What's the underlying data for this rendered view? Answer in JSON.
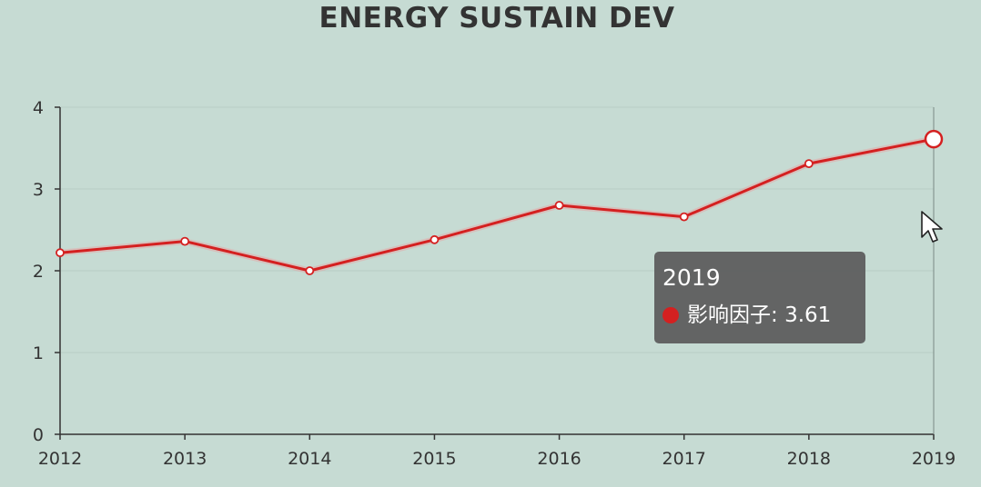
{
  "chart_data": {
    "type": "line",
    "title": "ENERGY SUSTAIN DEV",
    "xlabel": "",
    "ylabel": "",
    "categories": [
      "2012",
      "2013",
      "2014",
      "2015",
      "2016",
      "2017",
      "2018",
      "2019"
    ],
    "series": [
      {
        "name": "影响因子",
        "values": [
          2.22,
          2.36,
          2.0,
          2.38,
          2.8,
          2.66,
          3.31,
          3.61
        ],
        "color": "#d42020"
      }
    ],
    "yticks": [
      "0",
      "1",
      "2",
      "3",
      "4"
    ],
    "ylim": [
      0,
      4
    ],
    "grid": true,
    "legend": "none",
    "highlight_index": 7
  },
  "tooltip": {
    "title": "2019",
    "series_label": "影响因子",
    "value_text": "3.61",
    "separator": ": "
  },
  "colors": {
    "background": "#c6dbd3",
    "line": "#d42020",
    "axis": "#333333",
    "grid": "#b8ccc4"
  },
  "icons": {
    "cursor": "mouse-pointer-icon"
  }
}
